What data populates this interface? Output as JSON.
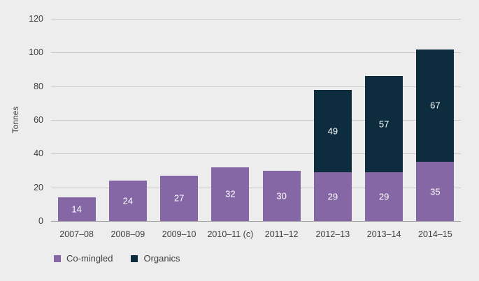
{
  "chart_data": {
    "type": "bar",
    "stacked": true,
    "title": "",
    "xlabel": "",
    "ylabel": "Tonnes",
    "categories": [
      "2007–08",
      "2008–09",
      "2009–10",
      "2010–11 (c)",
      "2011–12",
      "2012–13",
      "2013–14",
      "2014–15"
    ],
    "series": [
      {
        "name": "Co-mingled",
        "color": "#8667a6",
        "values": [
          14,
          24,
          27,
          32,
          30,
          29,
          29,
          35
        ]
      },
      {
        "name": "Organics",
        "color": "#0d2c3e",
        "values": [
          0,
          0,
          0,
          0,
          0,
          49,
          57,
          67
        ]
      }
    ],
    "ylim": [
      0,
      120
    ],
    "ytick_interval": 20,
    "grid": true,
    "legend_position": "bottom-left",
    "data_labels": "centered-white"
  },
  "colors": {
    "background": "#ededed",
    "gridline": "#c8c8c8",
    "axis_line": "#a3a3a3",
    "text": "#404040",
    "data_label_text": "#ffffff"
  }
}
